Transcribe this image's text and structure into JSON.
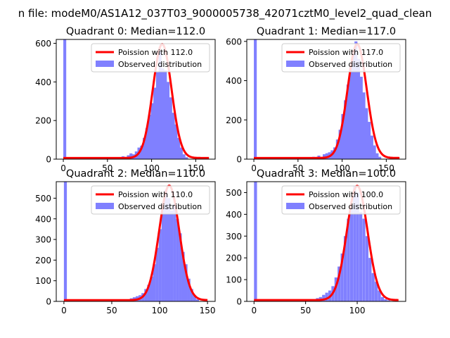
{
  "figure": {
    "suptitle": "n file: modeM0/AS1A12_037T03_9000005738_42071cztM0_level2_quad_clean"
  },
  "chart_data": [
    {
      "type": "bar",
      "title": "Quadrant 0: Median=112.0",
      "median": 112.0,
      "xlim": [
        -8,
        172
      ],
      "ylim": [
        0,
        620
      ],
      "xticks": [
        0,
        50,
        100,
        150
      ],
      "yticks": [
        0,
        200,
        400,
        600
      ],
      "legend": {
        "placement": "top-right",
        "entries": [
          "Poission with 112.0",
          "Observed distribution"
        ]
      },
      "hist": {
        "bin_width": 3.3,
        "bin_starts": [
          0,
          51,
          60,
          66,
          72,
          75,
          78,
          81,
          84,
          87,
          90,
          93,
          96,
          99,
          102,
          105,
          108,
          111,
          114,
          117,
          120,
          123,
          126,
          129,
          132,
          135,
          138
        ],
        "values": [
          620,
          8,
          10,
          15,
          20,
          30,
          25,
          40,
          60,
          70,
          110,
          160,
          230,
          290,
          370,
          450,
          560,
          470,
          460,
          400,
          320,
          240,
          180,
          110,
          60,
          25,
          10
        ]
      },
      "poisson": {
        "lambda": 112.0,
        "x_range": [
          0,
          165
        ],
        "peak": 590
      }
    },
    {
      "type": "bar",
      "title": "Quadrant 1: Median=117.0",
      "median": 117.0,
      "xlim": [
        -8,
        172
      ],
      "ylim": [
        0,
        610
      ],
      "xticks": [
        0,
        50,
        100,
        150
      ],
      "yticks": [
        0,
        200,
        400,
        600
      ],
      "legend": {
        "placement": "top-right",
        "entries": [
          "Poission with 117.0",
          "Observed distribution"
        ]
      },
      "hist": {
        "bin_width": 3.3,
        "bin_starts": [
          0,
          57,
          66,
          72,
          78,
          81,
          84,
          87,
          90,
          93,
          96,
          99,
          102,
          105,
          108,
          111,
          114,
          117,
          120,
          123,
          126,
          129,
          132,
          135,
          138,
          141
        ],
        "values": [
          610,
          8,
          12,
          18,
          25,
          30,
          35,
          45,
          60,
          100,
          150,
          230,
          300,
          380,
          470,
          550,
          600,
          510,
          420,
          340,
          260,
          190,
          120,
          70,
          30,
          12
        ]
      },
      "poisson": {
        "lambda": 117.0,
        "x_range": [
          0,
          165
        ],
        "peak": 580
      }
    },
    {
      "type": "bar",
      "title": "Quadrant 2: Median=110.0",
      "median": 110.0,
      "xlim": [
        -8,
        158
      ],
      "ylim": [
        0,
        580
      ],
      "xticks": [
        0,
        50,
        100,
        150
      ],
      "yticks": [
        0,
        100,
        200,
        300,
        400,
        500
      ],
      "legend": {
        "placement": "top-right",
        "entries": [
          "Poission with 110.0",
          "Observed distribution"
        ]
      },
      "hist": {
        "bin_width": 3.1,
        "bin_starts": [
          0,
          63,
          69,
          72,
          75,
          78,
          81,
          84,
          87,
          90,
          93,
          96,
          99,
          102,
          105,
          108,
          111,
          114,
          117,
          120,
          123,
          126,
          129,
          132,
          135,
          138
        ],
        "values": [
          580,
          10,
          15,
          20,
          25,
          30,
          40,
          60,
          80,
          120,
          180,
          260,
          350,
          450,
          540,
          500,
          440,
          470,
          400,
          330,
          240,
          180,
          110,
          60,
          30,
          10
        ]
      },
      "poisson": {
        "lambda": 110.0,
        "x_range": [
          0,
          150
        ],
        "peak": 555
      }
    },
    {
      "type": "bar",
      "title": "Quadrant 3: Median=100.0",
      "median": 100.0,
      "xlim": [
        -7,
        147
      ],
      "ylim": [
        0,
        550
      ],
      "xticks": [
        0,
        50,
        100
      ],
      "yticks": [
        0,
        100,
        200,
        300,
        400,
        500
      ],
      "legend": {
        "placement": "top-right",
        "entries": [
          "Poission with 100.0",
          "Observed distribution"
        ]
      },
      "hist": {
        "bin_width": 2.9,
        "bin_starts": [
          0,
          36,
          54,
          60,
          63,
          66,
          69,
          72,
          75,
          78,
          81,
          84,
          87,
          90,
          93,
          96,
          99,
          102,
          105,
          108,
          111,
          114,
          117,
          120,
          123,
          126,
          129
        ],
        "values": [
          550,
          5,
          8,
          15,
          20,
          30,
          40,
          50,
          70,
          110,
          160,
          220,
          300,
          380,
          440,
          530,
          500,
          410,
          380,
          300,
          200,
          130,
          90,
          50,
          20,
          10,
          5
        ]
      },
      "poisson": {
        "lambda": 100.0,
        "x_range": [
          0,
          140
        ],
        "peak": 525
      }
    }
  ]
}
